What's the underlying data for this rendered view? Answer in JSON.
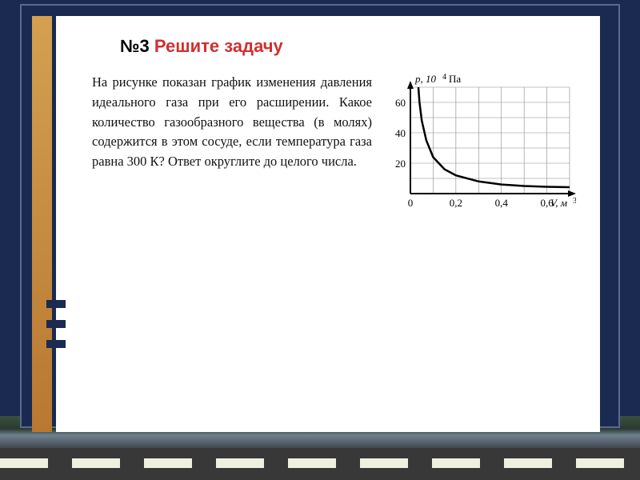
{
  "heading": {
    "num": "№3",
    "red": "Решите задачу"
  },
  "problem": {
    "text": "На рисунке показан график изменения давления идеального газа при его расширении. Ка­кое количество газообразного вещества (в молях) содержится в этом сосуде, если температура газа равна 300 К? Ответ округ­лите до целого числа."
  },
  "chart": {
    "type": "line",
    "y_label": "p, 10⁴ Па",
    "x_label": "V, м³",
    "x_ticks": [
      0,
      0.2,
      0.4,
      0.6
    ],
    "x_tick_labels": [
      "0",
      "0,2",
      "0,4",
      "0,6"
    ],
    "y_ticks": [
      20,
      40,
      60
    ],
    "y_tick_labels": [
      "20",
      "40",
      "60"
    ],
    "xlim": [
      0,
      0.7
    ],
    "ylim": [
      0,
      70
    ],
    "curve_points": [
      [
        0.035,
        70
      ],
      [
        0.04,
        60
      ],
      [
        0.05,
        48
      ],
      [
        0.07,
        35
      ],
      [
        0.1,
        24
      ],
      [
        0.15,
        16
      ],
      [
        0.2,
        12
      ],
      [
        0.3,
        8
      ],
      [
        0.4,
        6
      ],
      [
        0.5,
        5
      ],
      [
        0.6,
        4.5
      ],
      [
        0.7,
        4.2
      ]
    ],
    "grid_color": "#888888",
    "curve_color": "#000000",
    "curve_width": 2.5,
    "background": "#ffffff",
    "font_family": "Georgia, serif",
    "font_size_labels": 13,
    "font_size_ticks": 13
  },
  "colors": {
    "frame_bg": "#1a2a50",
    "orange_stripe": "#c08840",
    "card_bg": "#ffffff",
    "heading_red": "#d03030"
  }
}
